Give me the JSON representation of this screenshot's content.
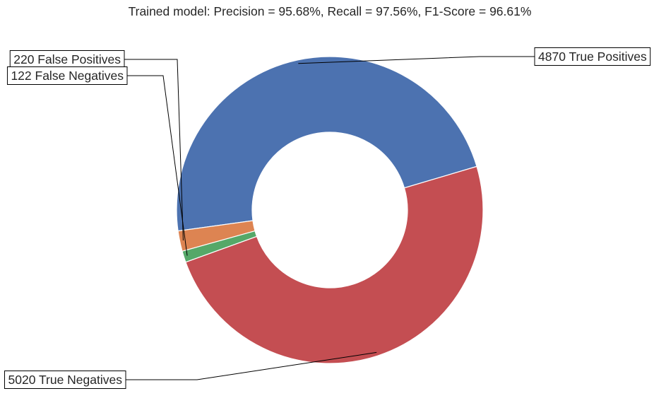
{
  "chart_data": {
    "type": "pie",
    "title": "Trained model: Precision = 95.68%, Recall = 97.56%, F1-Score = 96.61%",
    "donut": true,
    "start_angle_deg": 16.5,
    "direction": "counterclockwise",
    "slices": [
      {
        "label": "4870 True Positives",
        "value": 4870,
        "color": "#4c72b0"
      },
      {
        "label": "220 False Positives",
        "value": 220,
        "color": "#dd8452"
      },
      {
        "label": "122 False Negatives",
        "value": 122,
        "color": "#55a868"
      },
      {
        "label": "5020 True Negatives",
        "value": 5020,
        "color": "#c44e52"
      }
    ]
  }
}
